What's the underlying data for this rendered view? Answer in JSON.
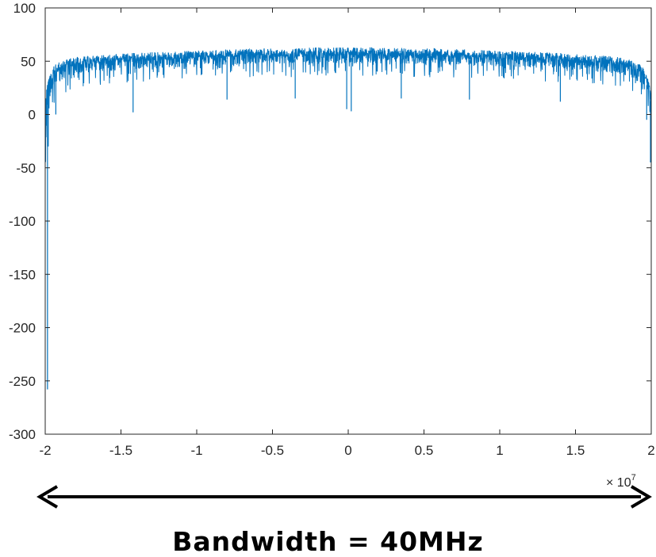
{
  "chart_data": {
    "type": "line",
    "title": "",
    "xlabel": "",
    "ylabel": "",
    "xlim": [
      -20000000,
      20000000
    ],
    "ylim": [
      -300,
      100
    ],
    "x_ticks": [
      -20000000,
      -15000000,
      -10000000,
      -5000000,
      0,
      5000000,
      10000000,
      15000000,
      20000000
    ],
    "x_tick_labels": [
      "-2",
      "-1.5",
      "-1",
      "-0.5",
      "0",
      "0.5",
      "1",
      "1.5",
      "2"
    ],
    "y_ticks": [
      -300,
      -250,
      -200,
      -150,
      -100,
      -50,
      0,
      50,
      100
    ],
    "y_tick_labels": [
      "-300",
      "-250",
      "-200",
      "-150",
      "-100",
      "-50",
      "0",
      "50",
      "100"
    ],
    "x_exponent_label": "× 10",
    "x_exponent_power": "7",
    "grid": false,
    "series": [
      {
        "color": "#0072BD",
        "envelope": {
          "x": [
            -20000000,
            -19900000,
            -19500000,
            -19000000,
            -18000000,
            -16000000,
            -14000000,
            -12000000,
            -10000000,
            -8000000,
            -6000000,
            -4000000,
            -2000000,
            0,
            2000000,
            4000000,
            6000000,
            8000000,
            10000000,
            12000000,
            14000000,
            16000000,
            18000000,
            19000000,
            19500000,
            19900000,
            20000000
          ],
          "upper": [
            15,
            30,
            45,
            50,
            54,
            56,
            58,
            59,
            60,
            61,
            62,
            62,
            63,
            63,
            63,
            62,
            62,
            61,
            60,
            59,
            58,
            56,
            54,
            50,
            45,
            30,
            15
          ],
          "lower": [
            -250,
            -10,
            5,
            18,
            25,
            28,
            30,
            32,
            33,
            34,
            35,
            35,
            36,
            36,
            36,
            35,
            35,
            34,
            33,
            32,
            30,
            28,
            25,
            18,
            5,
            -10,
            -30
          ]
        },
        "notable_dips": [
          {
            "x": -19850000,
            "y": -258
          },
          {
            "x": -19800000,
            "y": -30
          },
          {
            "x": -19300000,
            "y": 0
          },
          {
            "x": -14200000,
            "y": 2
          },
          {
            "x": -8000000,
            "y": 14
          },
          {
            "x": -3500000,
            "y": 15
          },
          {
            "x": -100000,
            "y": 5
          },
          {
            "x": 200000,
            "y": 3
          },
          {
            "x": 3500000,
            "y": 15
          },
          {
            "x": 8000000,
            "y": 14
          },
          {
            "x": 14000000,
            "y": 12
          },
          {
            "x": 19700000,
            "y": -5
          },
          {
            "x": 19950000,
            "y": -45
          }
        ]
      }
    ]
  },
  "annotation": {
    "arrow": "double-headed",
    "caption": "Bandwidth = 40MHz"
  }
}
